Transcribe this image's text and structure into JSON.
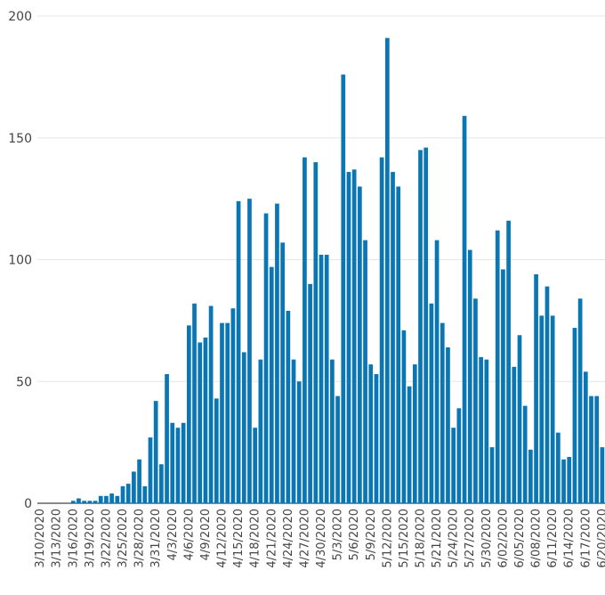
{
  "chart_data": {
    "type": "bar",
    "title": "",
    "xlabel": "",
    "ylabel": "",
    "ylim": [
      0,
      200
    ],
    "y_ticks": [
      0,
      50,
      100,
      150,
      200
    ],
    "grid": "horizontal",
    "bar_color": "#0a77b4",
    "x_tick_labels": [
      "3/10/2020",
      "3/13/2020",
      "3/16/2020",
      "3/19/2020",
      "3/22/2020",
      "3/25/2020",
      "3/28/2020",
      "3/31/2020",
      "4/3/2020",
      "4/6/2020",
      "4/9/2020",
      "4/12/2020",
      "4/15/2020",
      "4/18/2020",
      "4/21/2020",
      "4/24/2020",
      "4/27/2020",
      "4/30/2020",
      "5/3/2020",
      "5/6/2020",
      "5/9/2020",
      "5/12/2020",
      "5/15/2020",
      "5/18/2020",
      "5/21/2020",
      "5/24/2020",
      "5/27/2020",
      "5/30/2020",
      "6/02/2020",
      "6/05/2020",
      "6/08/2020",
      "6/11/2020",
      "6/14/2020",
      "6/17/2020",
      "6/20/2020"
    ],
    "start_date": "3/10/2020",
    "values": [
      0,
      0,
      0,
      0,
      0,
      0,
      1,
      2,
      1,
      1,
      1,
      3,
      3,
      4,
      3,
      7,
      8,
      13,
      18,
      7,
      27,
      42,
      16,
      53,
      33,
      31,
      33,
      73,
      82,
      66,
      68,
      81,
      43,
      74,
      74,
      80,
      124,
      62,
      125,
      31,
      59,
      119,
      97,
      123,
      107,
      79,
      59,
      50,
      142,
      90,
      140,
      102,
      102,
      59,
      44,
      176,
      136,
      137,
      130,
      108,
      57,
      53,
      142,
      191,
      136,
      130,
      71,
      48,
      57,
      145,
      146,
      82,
      108,
      74,
      64,
      31,
      39,
      159,
      104,
      84,
      60,
      59,
      23,
      112,
      96,
      116,
      56,
      69,
      40,
      22,
      94,
      77,
      89,
      77,
      29,
      18,
      19,
      72,
      84,
      54,
      44,
      44,
      23
    ]
  }
}
